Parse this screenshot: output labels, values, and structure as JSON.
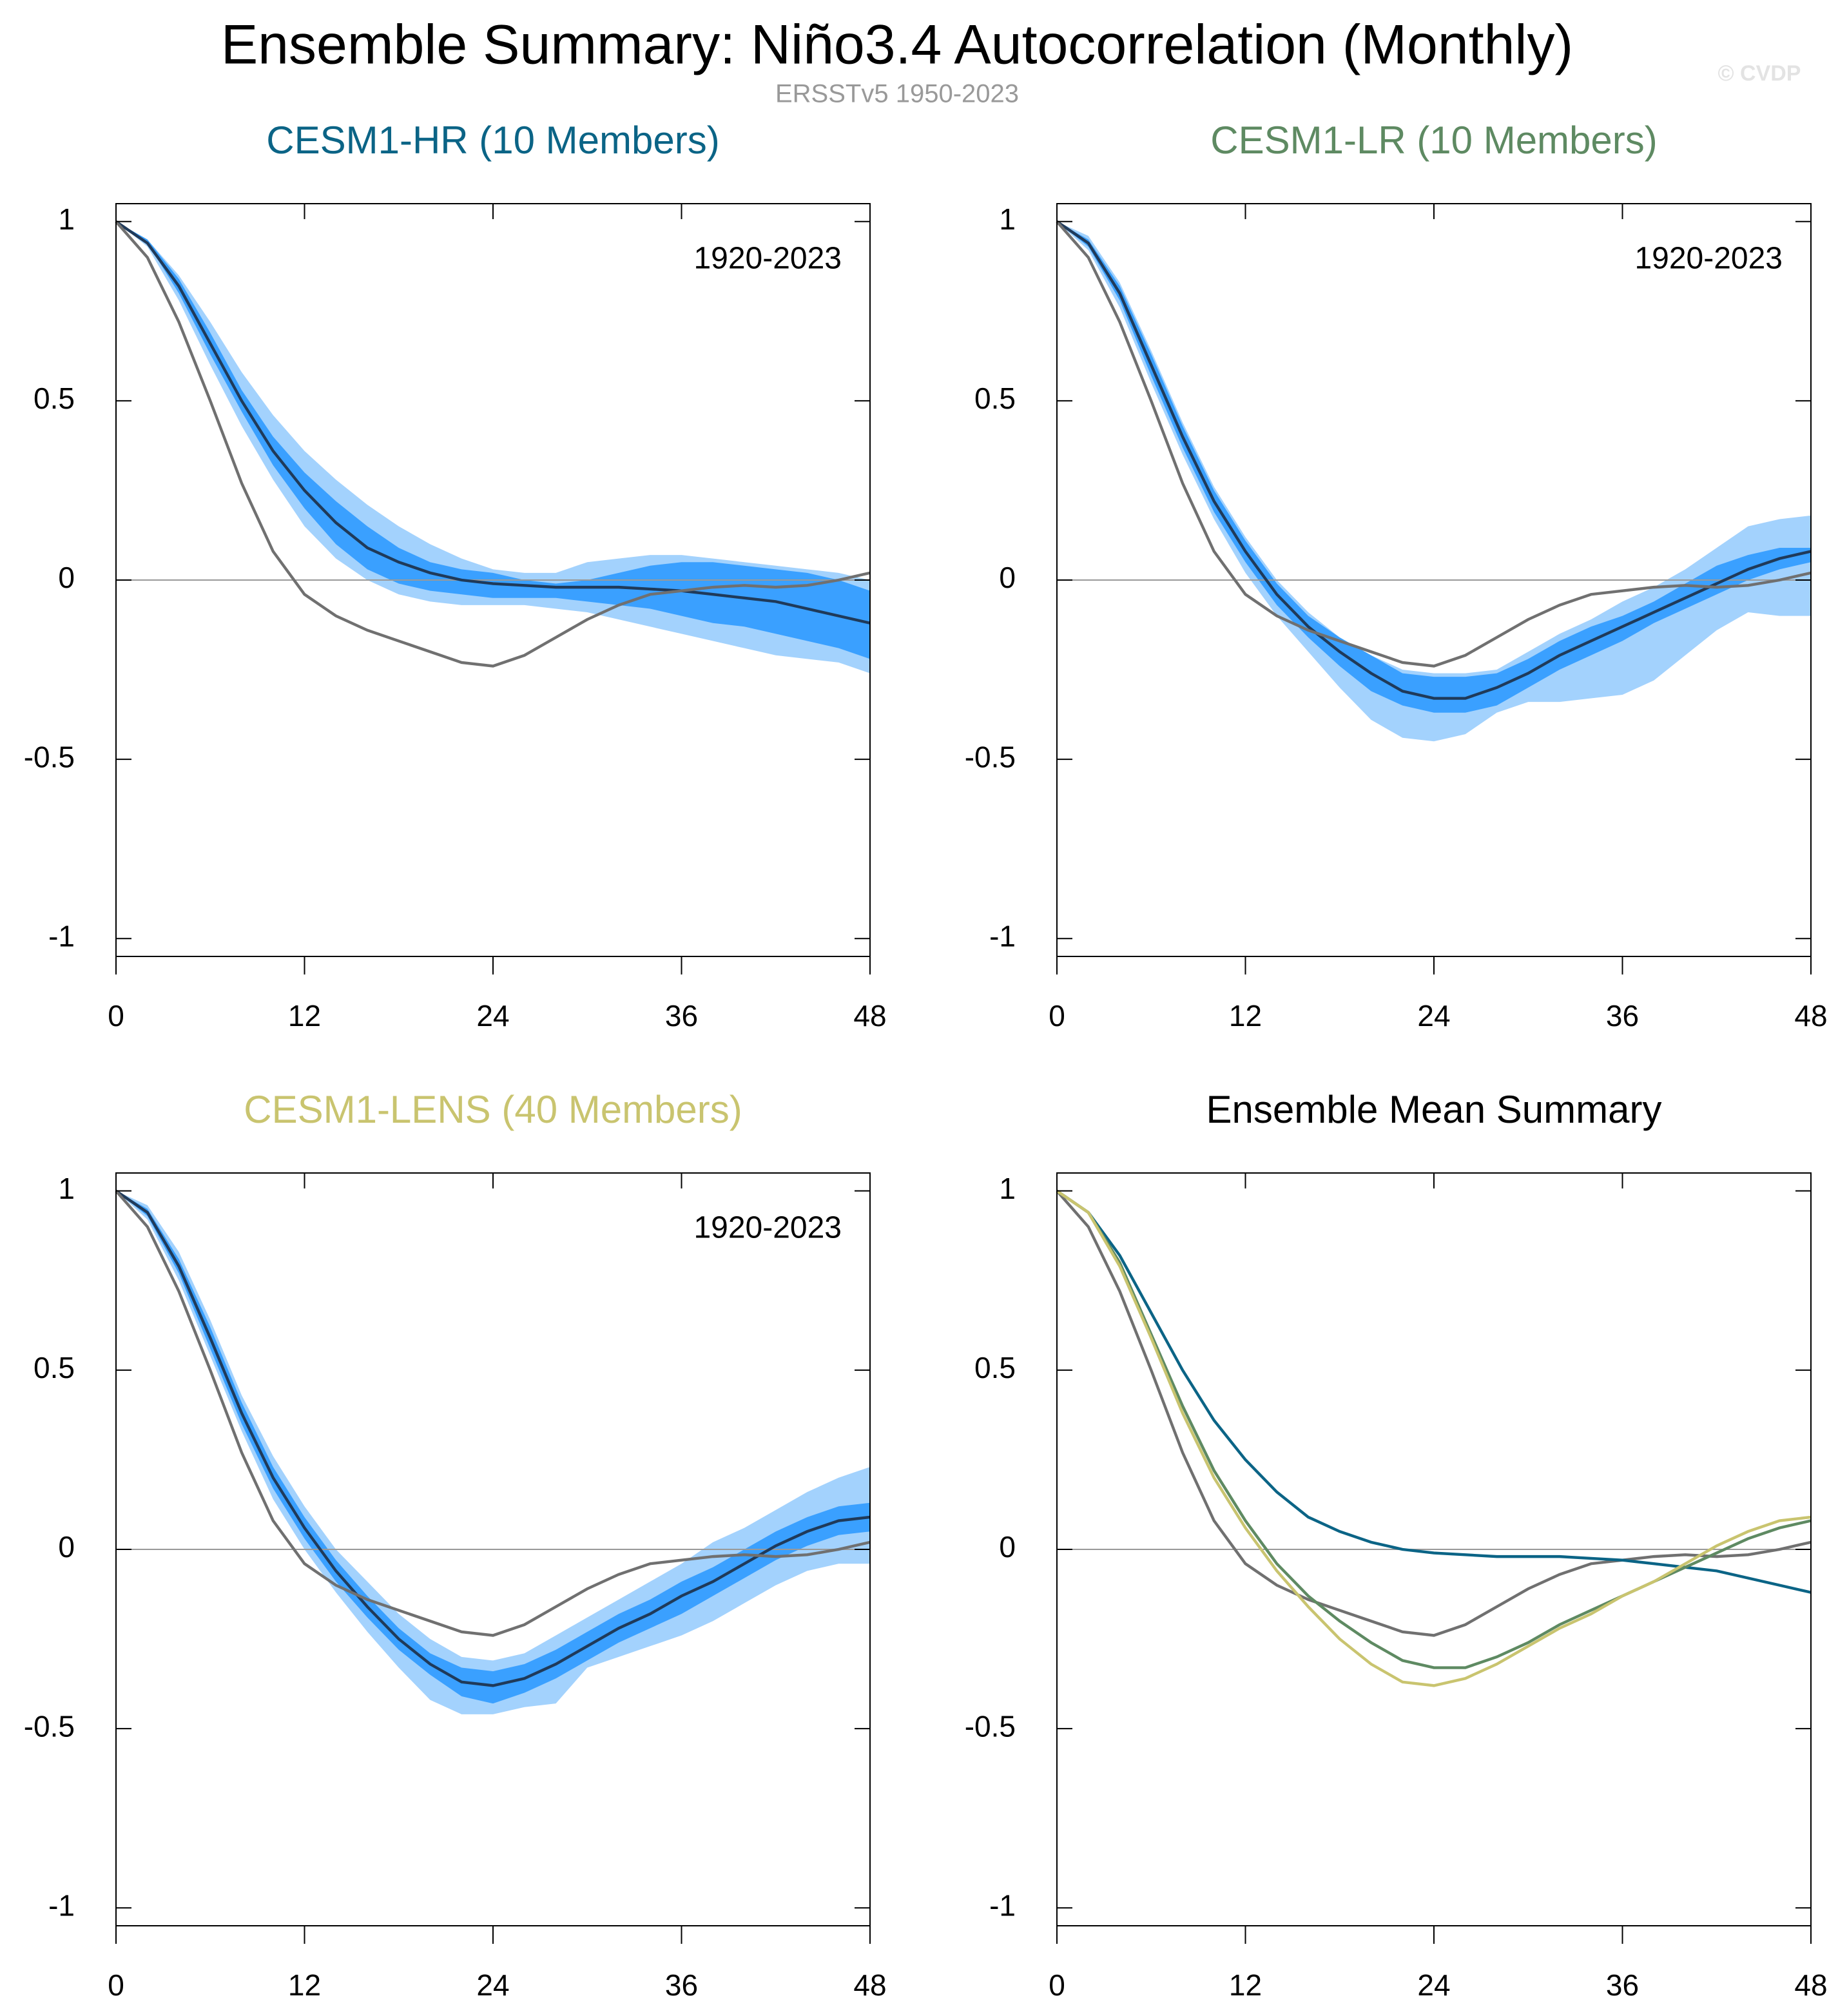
{
  "title": "Ensemble Summary: Niño3.4 Autocorrelation (Monthly)",
  "subtitle": "ERSSTv5 1950-2023",
  "watermark": "© CVDP",
  "chart_data": [
    {
      "type": "line",
      "title": "CESM1-HR (10 Members)",
      "title_color": "#0b6486",
      "annotation": "1920-2023",
      "x": [
        0,
        2,
        4,
        6,
        8,
        10,
        12,
        14,
        16,
        18,
        20,
        22,
        24,
        26,
        28,
        30,
        32,
        34,
        36,
        38,
        40,
        42,
        44,
        46,
        48
      ],
      "bands": [
        {
          "color": "#a3d2fd",
          "upper": [
            1,
            0.95,
            0.85,
            0.72,
            0.58,
            0.46,
            0.36,
            0.28,
            0.21,
            0.15,
            0.1,
            0.06,
            0.03,
            0.02,
            0.02,
            0.05,
            0.06,
            0.07,
            0.07,
            0.06,
            0.05,
            0.04,
            0.03,
            0.02,
            0.0
          ],
          "lower": [
            1,
            0.93,
            0.78,
            0.6,
            0.43,
            0.28,
            0.15,
            0.06,
            0.0,
            -0.04,
            -0.06,
            -0.07,
            -0.07,
            -0.07,
            -0.08,
            -0.09,
            -0.11,
            -0.13,
            -0.15,
            -0.17,
            -0.19,
            -0.21,
            -0.22,
            -0.23,
            -0.26
          ]
        },
        {
          "color": "#3aa0ff",
          "upper": [
            1,
            0.95,
            0.84,
            0.69,
            0.53,
            0.4,
            0.3,
            0.22,
            0.15,
            0.09,
            0.05,
            0.03,
            0.02,
            0.0,
            -0.01,
            0.0,
            0.02,
            0.04,
            0.05,
            0.05,
            0.04,
            0.03,
            0.02,
            0.0,
            -0.03
          ],
          "lower": [
            1,
            0.94,
            0.8,
            0.63,
            0.47,
            0.32,
            0.2,
            0.1,
            0.03,
            -0.01,
            -0.03,
            -0.04,
            -0.05,
            -0.05,
            -0.05,
            -0.06,
            -0.07,
            -0.08,
            -0.1,
            -0.12,
            -0.13,
            -0.15,
            -0.17,
            -0.19,
            -0.22
          ]
        }
      ],
      "series": [
        {
          "color": "#1f3a5a",
          "values": [
            1,
            0.94,
            0.82,
            0.66,
            0.5,
            0.36,
            0.25,
            0.16,
            0.09,
            0.05,
            0.02,
            0.0,
            -0.01,
            -0.015,
            -0.02,
            -0.02,
            -0.02,
            -0.025,
            -0.03,
            -0.04,
            -0.05,
            -0.06,
            -0.08,
            -0.1,
            -0.12
          ]
        },
        {
          "color": "#707070",
          "values": [
            1,
            0.9,
            0.72,
            0.5,
            0.27,
            0.08,
            -0.04,
            -0.1,
            -0.14,
            -0.17,
            -0.2,
            -0.23,
            -0.24,
            -0.21,
            -0.16,
            -0.11,
            -0.07,
            -0.04,
            -0.03,
            -0.02,
            -0.015,
            -0.02,
            -0.015,
            0.0,
            0.02
          ]
        }
      ],
      "xlim": [
        0,
        48
      ],
      "ylim": [
        -1.05,
        1.05
      ],
      "xticks": [
        0,
        12,
        24,
        36,
        48
      ],
      "yticks": [
        -1,
        -0.5,
        0,
        0.5,
        1
      ],
      "zero_line": true
    },
    {
      "type": "line",
      "title": "CESM1-LR (10 Members)",
      "title_color": "#5e8a62",
      "annotation": "1920-2023",
      "x": [
        0,
        2,
        4,
        6,
        8,
        10,
        12,
        14,
        16,
        18,
        20,
        22,
        24,
        26,
        28,
        30,
        32,
        34,
        36,
        38,
        40,
        42,
        44,
        46,
        48
      ],
      "bands": [
        {
          "color": "#a3d2fd",
          "upper": [
            1,
            0.96,
            0.83,
            0.64,
            0.44,
            0.26,
            0.12,
            0.0,
            -0.09,
            -0.16,
            -0.21,
            -0.25,
            -0.26,
            -0.26,
            -0.25,
            -0.2,
            -0.15,
            -0.11,
            -0.06,
            -0.02,
            0.03,
            0.09,
            0.15,
            0.17,
            0.18
          ],
          "lower": [
            1,
            0.92,
            0.76,
            0.55,
            0.35,
            0.17,
            0.02,
            -0.1,
            -0.2,
            -0.3,
            -0.39,
            -0.44,
            -0.45,
            -0.43,
            -0.37,
            -0.34,
            -0.34,
            -0.33,
            -0.32,
            -0.28,
            -0.21,
            -0.14,
            -0.09,
            -0.1,
            -0.1
          ]
        },
        {
          "color": "#3aa0ff",
          "upper": [
            1,
            0.95,
            0.82,
            0.63,
            0.43,
            0.25,
            0.11,
            -0.01,
            -0.1,
            -0.16,
            -0.21,
            -0.26,
            -0.27,
            -0.27,
            -0.26,
            -0.22,
            -0.17,
            -0.13,
            -0.1,
            -0.06,
            -0.01,
            0.04,
            0.07,
            0.09,
            0.09
          ],
          "lower": [
            1,
            0.93,
            0.78,
            0.57,
            0.37,
            0.19,
            0.05,
            -0.07,
            -0.16,
            -0.24,
            -0.31,
            -0.35,
            -0.37,
            -0.37,
            -0.35,
            -0.3,
            -0.25,
            -0.21,
            -0.17,
            -0.12,
            -0.08,
            -0.04,
            0.0,
            0.03,
            0.05
          ]
        }
      ],
      "series": [
        {
          "color": "#1f3a5a",
          "values": [
            1,
            0.94,
            0.8,
            0.6,
            0.4,
            0.22,
            0.08,
            -0.04,
            -0.13,
            -0.2,
            -0.26,
            -0.31,
            -0.33,
            -0.33,
            -0.3,
            -0.26,
            -0.21,
            -0.17,
            -0.13,
            -0.09,
            -0.05,
            -0.01,
            0.03,
            0.06,
            0.08
          ]
        },
        {
          "color": "#707070",
          "values": [
            1,
            0.9,
            0.72,
            0.5,
            0.27,
            0.08,
            -0.04,
            -0.1,
            -0.14,
            -0.17,
            -0.2,
            -0.23,
            -0.24,
            -0.21,
            -0.16,
            -0.11,
            -0.07,
            -0.04,
            -0.03,
            -0.02,
            -0.015,
            -0.02,
            -0.015,
            0.0,
            0.02
          ]
        }
      ],
      "xlim": [
        0,
        48
      ],
      "ylim": [
        -1.05,
        1.05
      ],
      "xticks": [
        0,
        12,
        24,
        36,
        48
      ],
      "yticks": [
        -1,
        -0.5,
        0,
        0.5,
        1
      ],
      "zero_line": true
    },
    {
      "type": "line",
      "title": "CESM1-LENS (40 Members)",
      "title_color": "#c9c46f",
      "annotation": "1920-2023",
      "x": [
        0,
        2,
        4,
        6,
        8,
        10,
        12,
        14,
        16,
        18,
        20,
        22,
        24,
        26,
        28,
        30,
        32,
        34,
        36,
        38,
        40,
        42,
        44,
        46,
        48
      ],
      "bands": [
        {
          "color": "#a3d2fd",
          "upper": [
            1,
            0.96,
            0.83,
            0.64,
            0.43,
            0.26,
            0.12,
            0.0,
            -0.09,
            -0.18,
            -0.25,
            -0.3,
            -0.31,
            -0.29,
            -0.24,
            -0.19,
            -0.14,
            -0.09,
            -0.04,
            0.02,
            0.06,
            0.11,
            0.16,
            0.2,
            0.23
          ],
          "lower": [
            1,
            0.92,
            0.75,
            0.54,
            0.33,
            0.14,
            0.0,
            -0.12,
            -0.23,
            -0.33,
            -0.42,
            -0.46,
            -0.46,
            -0.44,
            -0.43,
            -0.33,
            -0.3,
            -0.27,
            -0.24,
            -0.2,
            -0.15,
            -0.1,
            -0.06,
            -0.04,
            -0.04
          ]
        },
        {
          "color": "#3aa0ff",
          "upper": [
            1,
            0.95,
            0.81,
            0.62,
            0.41,
            0.23,
            0.09,
            -0.03,
            -0.13,
            -0.22,
            -0.29,
            -0.33,
            -0.34,
            -0.32,
            -0.28,
            -0.23,
            -0.18,
            -0.14,
            -0.09,
            -0.05,
            0.0,
            0.05,
            0.09,
            0.12,
            0.13
          ],
          "lower": [
            1,
            0.93,
            0.77,
            0.56,
            0.35,
            0.17,
            0.03,
            -0.09,
            -0.19,
            -0.28,
            -0.35,
            -0.41,
            -0.43,
            -0.4,
            -0.36,
            -0.31,
            -0.26,
            -0.22,
            -0.18,
            -0.13,
            -0.08,
            -0.03,
            0.01,
            0.04,
            0.05
          ]
        }
      ],
      "series": [
        {
          "color": "#1f3a5a",
          "values": [
            1,
            0.94,
            0.79,
            0.59,
            0.38,
            0.2,
            0.06,
            -0.06,
            -0.16,
            -0.25,
            -0.32,
            -0.37,
            -0.38,
            -0.36,
            -0.32,
            -0.27,
            -0.22,
            -0.18,
            -0.13,
            -0.09,
            -0.04,
            0.01,
            0.05,
            0.08,
            0.09
          ]
        },
        {
          "color": "#707070",
          "values": [
            1,
            0.9,
            0.72,
            0.5,
            0.27,
            0.08,
            -0.04,
            -0.1,
            -0.14,
            -0.17,
            -0.2,
            -0.23,
            -0.24,
            -0.21,
            -0.16,
            -0.11,
            -0.07,
            -0.04,
            -0.03,
            -0.02,
            -0.015,
            -0.02,
            -0.015,
            0.0,
            0.02
          ]
        }
      ],
      "xlim": [
        0,
        48
      ],
      "ylim": [
        -1.05,
        1.05
      ],
      "xticks": [
        0,
        12,
        24,
        36,
        48
      ],
      "yticks": [
        -1,
        -0.5,
        0,
        0.5,
        1
      ],
      "zero_line": true
    },
    {
      "type": "line",
      "title": "Ensemble Mean Summary",
      "title_color": "#000000",
      "x": [
        0,
        2,
        4,
        6,
        8,
        10,
        12,
        14,
        16,
        18,
        20,
        22,
        24,
        26,
        28,
        30,
        32,
        34,
        36,
        38,
        40,
        42,
        44,
        46,
        48
      ],
      "series": [
        {
          "color": "#707070",
          "values": [
            1,
            0.9,
            0.72,
            0.5,
            0.27,
            0.08,
            -0.04,
            -0.1,
            -0.14,
            -0.17,
            -0.2,
            -0.23,
            -0.24,
            -0.21,
            -0.16,
            -0.11,
            -0.07,
            -0.04,
            -0.03,
            -0.02,
            -0.015,
            -0.02,
            -0.015,
            0.0,
            0.02
          ]
        },
        {
          "color": "#0b6486",
          "values": [
            1,
            0.94,
            0.82,
            0.66,
            0.5,
            0.36,
            0.25,
            0.16,
            0.09,
            0.05,
            0.02,
            0.0,
            -0.01,
            -0.015,
            -0.02,
            -0.02,
            -0.02,
            -0.025,
            -0.03,
            -0.04,
            -0.05,
            -0.06,
            -0.08,
            -0.1,
            -0.12
          ]
        },
        {
          "color": "#5e8a62",
          "values": [
            1,
            0.94,
            0.8,
            0.6,
            0.4,
            0.22,
            0.08,
            -0.04,
            -0.13,
            -0.2,
            -0.26,
            -0.31,
            -0.33,
            -0.33,
            -0.3,
            -0.26,
            -0.21,
            -0.17,
            -0.13,
            -0.09,
            -0.05,
            -0.01,
            0.03,
            0.06,
            0.08
          ]
        },
        {
          "color": "#c9c46f",
          "values": [
            1,
            0.94,
            0.79,
            0.59,
            0.38,
            0.2,
            0.06,
            -0.06,
            -0.16,
            -0.25,
            -0.32,
            -0.37,
            -0.38,
            -0.36,
            -0.32,
            -0.27,
            -0.22,
            -0.18,
            -0.13,
            -0.09,
            -0.04,
            0.01,
            0.05,
            0.08,
            0.09
          ]
        }
      ],
      "xlim": [
        0,
        48
      ],
      "ylim": [
        -1.05,
        1.05
      ],
      "xticks": [
        0,
        12,
        24,
        36,
        48
      ],
      "yticks": [
        -1,
        -0.5,
        0,
        0.5,
        1
      ],
      "zero_line": true
    }
  ]
}
